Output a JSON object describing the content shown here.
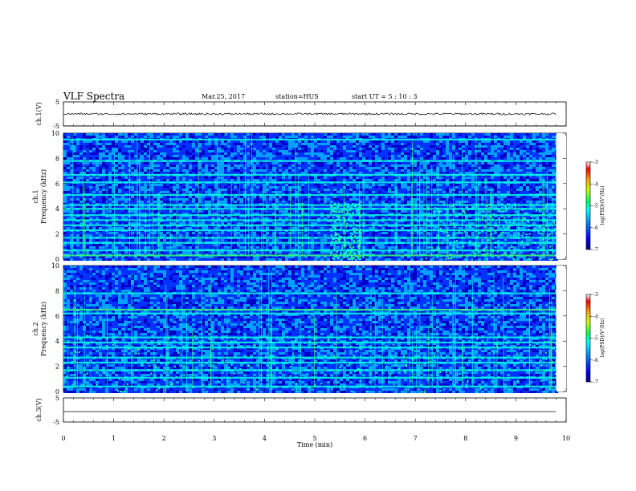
{
  "header": {
    "title": "VLF Spectra",
    "date": "Mar.25, 2017",
    "station": "station=HUS",
    "start": "start  UT =  5 : 10 : 3"
  },
  "chart_data": [
    {
      "type": "line",
      "panel": "ch1-waveform",
      "ylabel": "ch.1(V)",
      "ylim": [
        -5,
        5
      ],
      "yticks": [
        "5",
        "-5"
      ],
      "xlim": [
        0,
        10
      ],
      "baseline": 0,
      "color": "#000000"
    },
    {
      "type": "heatmap",
      "panel": "ch1-spectrogram",
      "ylabel_channel": "ch.1",
      "ylabel": "Frequency (kHz)",
      "ylim": [
        0,
        10
      ],
      "yticks": [
        "0",
        "2",
        "4",
        "6",
        "8",
        "10"
      ],
      "xlim": [
        0,
        10
      ],
      "data_end_min": 9.8,
      "colorbar": {
        "range": [
          -7,
          -3
        ],
        "ticks": [
          "-3",
          "-4",
          "-5",
          "-6",
          "-7"
        ],
        "label": "log(PSD)(V²/Hz)"
      },
      "bands_khz": [
        0.3,
        0.7,
        1.3,
        1.7,
        2.3,
        2.7,
        3.1,
        3.5,
        4.0,
        4.3,
        5.1,
        6.1,
        6.7,
        7.8,
        9.5
      ],
      "activity_min": [
        [
          5.3,
          5.9
        ],
        [
          7.2,
          9.8
        ]
      ]
    },
    {
      "type": "heatmap",
      "panel": "ch2-spectrogram",
      "ylabel_channel": "ch.2",
      "ylabel": "Frequency (kHz)",
      "ylim": [
        0,
        10
      ],
      "yticks": [
        "0",
        "2",
        "4",
        "6",
        "8",
        "10"
      ],
      "xlim": [
        0,
        10
      ],
      "data_end_min": 9.8,
      "colorbar": {
        "range": [
          -7,
          -3
        ],
        "ticks": [
          "-3",
          "-4",
          "-5",
          "-6",
          "-7"
        ],
        "label": "log(PSD)(V²/Hz)"
      },
      "bands_khz": [
        0.4,
        1.1,
        1.7,
        2.3,
        2.7,
        3.5,
        3.9,
        4.3,
        6.2,
        6.5,
        7.8
      ],
      "activity_min": [
        [
          0,
          9.8
        ]
      ]
    },
    {
      "type": "line",
      "panel": "ch3-waveform",
      "ylabel": "ch.3(V)",
      "xlabel": "Time (min)",
      "ylim": [
        -5,
        5
      ],
      "yticks": [
        "5",
        "-5"
      ],
      "xlim": [
        0,
        10
      ],
      "xticks": [
        "0",
        "1",
        "2",
        "3",
        "4",
        "5",
        "6",
        "7",
        "8",
        "9",
        "10"
      ],
      "baseline": -2,
      "color": "#000000"
    }
  ],
  "colors": {
    "colormap": [
      "#00007a",
      "#0000c8",
      "#0032ff",
      "#00a0ff",
      "#00ffe0",
      "#3cff7a",
      "#c8ff00",
      "#ffc800",
      "#ff5000",
      "#ff0000",
      "#ffffff"
    ]
  }
}
